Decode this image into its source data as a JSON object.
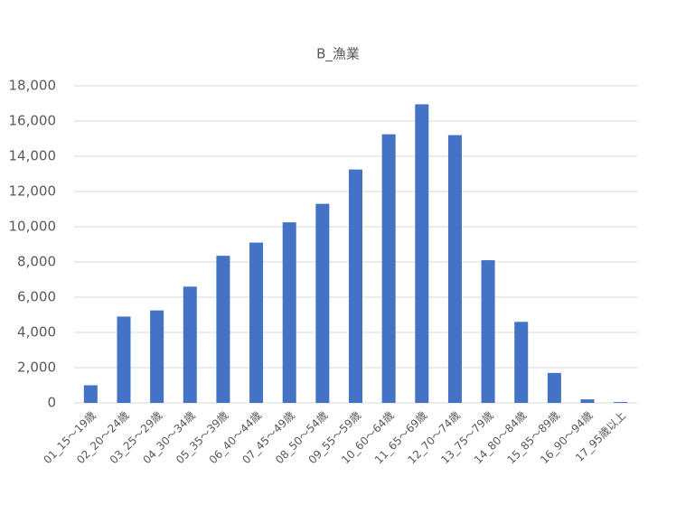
{
  "chart_data": {
    "type": "bar",
    "title": "B_漁業",
    "categories": [
      "01_15～19歳",
      "02_20～24歳",
      "03_25～29歳",
      "04_30～34歳",
      "05_35～39歳",
      "06_40～44歳",
      "07_45～49歳",
      "08_50～54歳",
      "09_55～59歳",
      "10_60～64歳",
      "11_65～69歳",
      "12_70～74歳",
      "13_75～79歳",
      "14_80～84歳",
      "15_85～89歳",
      "16_90～94歳",
      "17_95歳以上"
    ],
    "values": [
      1000,
      4900,
      5250,
      6600,
      8350,
      9100,
      10250,
      11300,
      13250,
      15250,
      16950,
      15200,
      8100,
      4600,
      1700,
      200,
      50
    ],
    "color": "#4472c4",
    "ylim": [
      0,
      18000
    ],
    "yticks": [
      0,
      {
        "value": 2000,
        "label": "2,000"
      },
      {
        "value": 4000,
        "label": "4,000"
      },
      {
        "value": 6000,
        "label": "6,000"
      },
      {
        "value": 8000,
        "label": "8,000"
      },
      {
        "value": 10000,
        "label": "10,000"
      },
      {
        "value": 12000,
        "label": "12,000"
      },
      {
        "value": 14000,
        "label": "14,000"
      },
      {
        "value": 16000,
        "label": "16,000"
      },
      {
        "value": 18000,
        "label": "18,000"
      }
    ],
    "grid": true
  }
}
